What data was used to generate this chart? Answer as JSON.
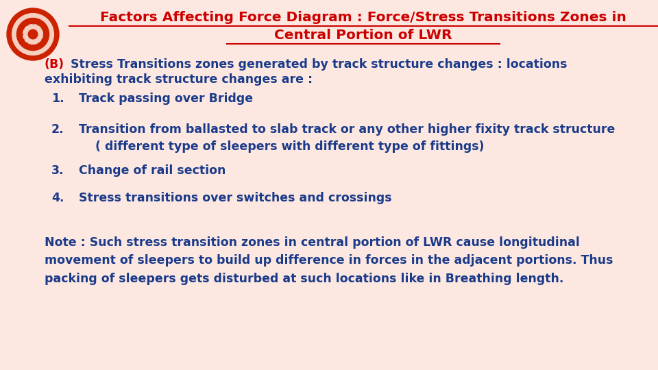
{
  "bg_color": "#fce8e0",
  "title_line1": "Factors Affecting Force Diagram : Force/Stress Transitions Zones in",
  "title_line2": "Central Portion of LWR",
  "title_color": "#cc0000",
  "title_fontsize": 14.5,
  "body_color": "#1a3a8a",
  "body_fontsize": 12.5,
  "note_fontsize": 12.5,
  "b_label": "(B)",
  "b_label_color": "#cc0000",
  "intro_line1": " Stress Transitions zones generated by track structure changes : locations",
  "intro_line2": "exhibiting track structure changes are :",
  "items": [
    "Track passing over Bridge",
    "Transition from ballasted to slab track or any other higher fixity track structure\n    ( different type of sleepers with different type of fittings)",
    "Change of rail section",
    "Stress transitions over switches and crossings"
  ],
  "note": "Note : Such stress transition zones in central portion of LWR cause longitudinal\nmovement of sleepers to build up difference in forces in the adjacent portions. Thus\npacking of sleepers gets disturbed at such locations like in Breathing length."
}
